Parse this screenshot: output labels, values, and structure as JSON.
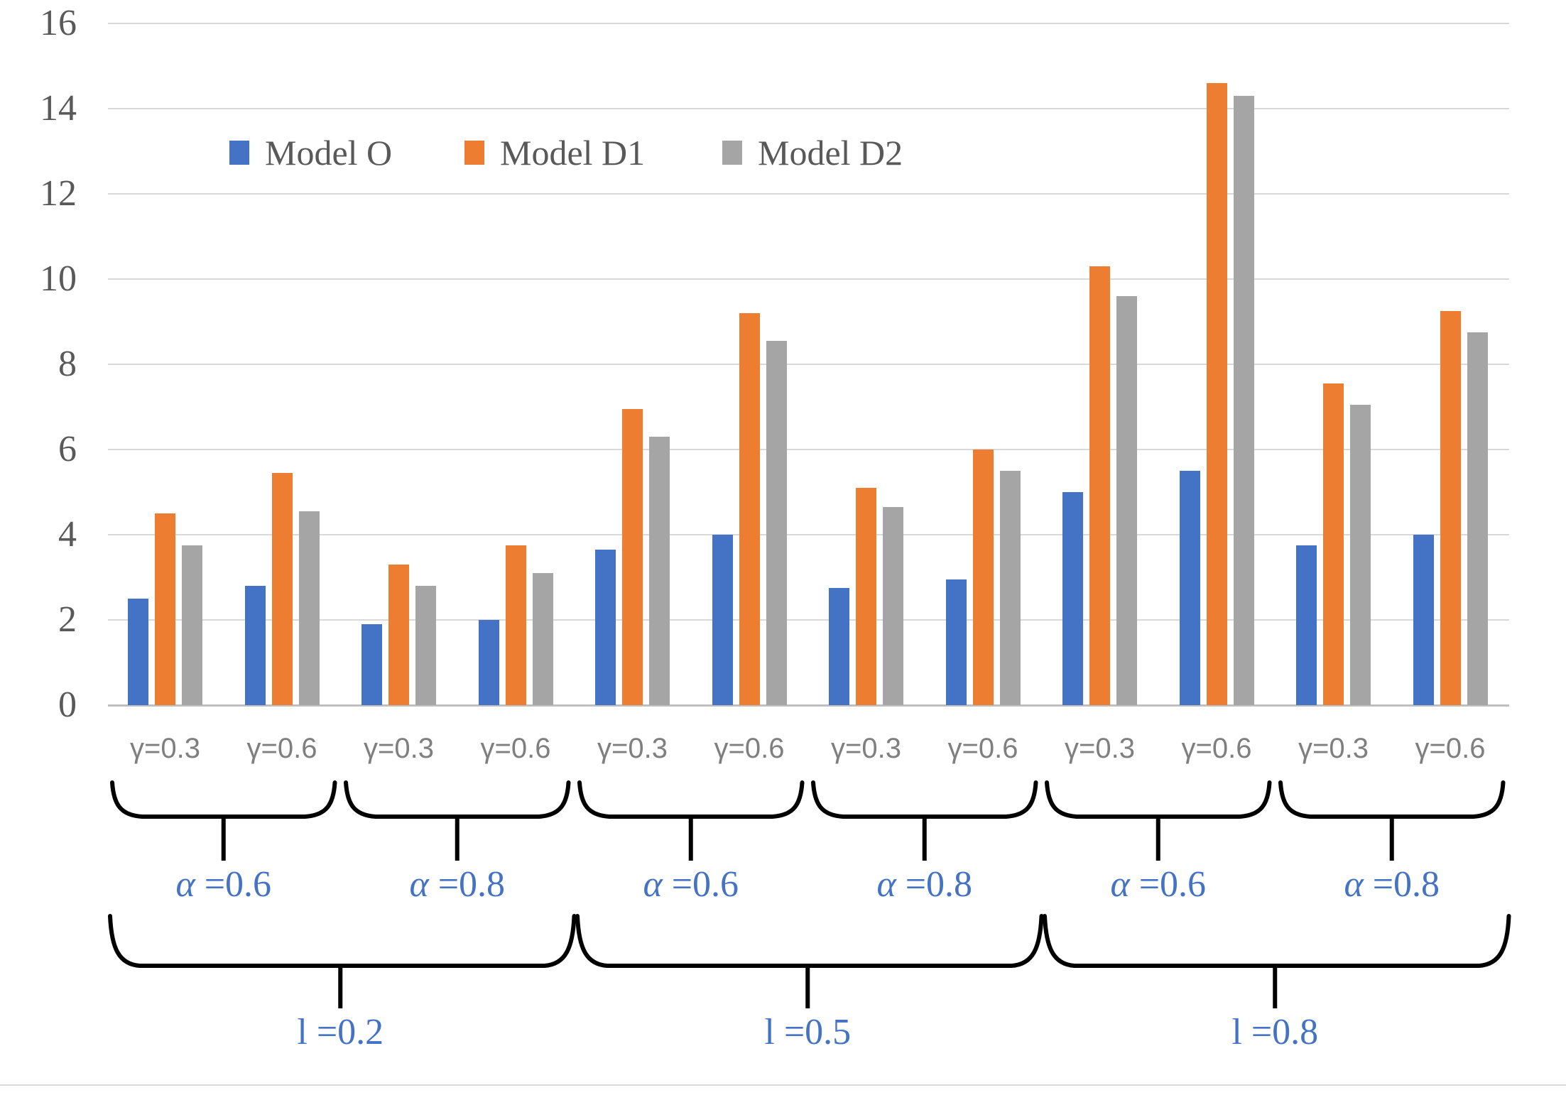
{
  "chart_data": {
    "type": "bar",
    "title": "",
    "categories": [
      "γ=0.3",
      "γ=0.6",
      "γ=0.3",
      "γ=0.6",
      "γ=0.3",
      "γ=0.6",
      "γ=0.3",
      "γ=0.6",
      "γ=0.3",
      "γ=0.6",
      "γ=0.3",
      "γ=0.6"
    ],
    "series": [
      {
        "name": "Model O",
        "color": "#4472C4",
        "values": [
          2.5,
          2.8,
          1.9,
          2.0,
          3.65,
          4.0,
          2.75,
          2.95,
          5.0,
          5.5,
          3.75,
          4.0
        ]
      },
      {
        "name": "Model D1",
        "color": "#ED7D31",
        "values": [
          4.5,
          5.45,
          3.3,
          3.75,
          6.95,
          9.2,
          5.1,
          6.0,
          10.3,
          14.6,
          7.55,
          9.25
        ]
      },
      {
        "name": "Model D2",
        "color": "#A5A5A5",
        "values": [
          3.75,
          4.55,
          2.8,
          3.1,
          6.3,
          8.55,
          4.65,
          5.5,
          9.6,
          14.3,
          7.05,
          8.75
        ]
      }
    ],
    "alpha_sections": [
      "α =0.6",
      "α =0.8",
      "α =0.6",
      "α =0.8",
      "α =0.6",
      "α =0.8"
    ],
    "lambda_sections": [
      "l =0.2",
      "l =0.5",
      "l =0.8"
    ],
    "yticks": [
      0,
      2,
      4,
      6,
      8,
      10,
      12,
      14,
      16
    ],
    "ylim": [
      0,
      16
    ],
    "grid": true,
    "legend_position": "top-inside",
    "xlabel": "",
    "ylabel": ""
  },
  "colors": {
    "series_blue": "#4472C4",
    "series_orange": "#ED7D31",
    "series_gray": "#A5A5A5",
    "gridline": "#D9D9D9",
    "axis_line": "#BFBFBF",
    "tick_text": "#595959",
    "legend_text": "#595959",
    "category_text": "#7F7F7F",
    "section_label_text": "#4472C4",
    "brace": "#000000"
  }
}
